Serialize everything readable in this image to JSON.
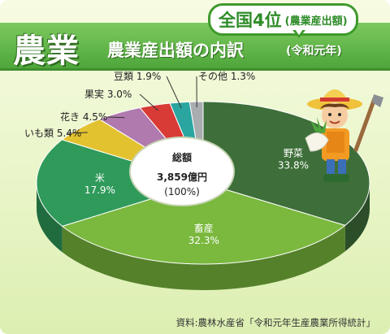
{
  "header": {
    "crop_label": "農業",
    "title": "農業産出額の内訳",
    "subtitle": "(令和元年)",
    "rank_main": "全国4位",
    "rank_note": "(農業産出額)"
  },
  "center_label": {
    "line1": "総額",
    "line2": "3,859億円",
    "line3": "(100%)"
  },
  "chart_data": {
    "type": "pie",
    "title": "農業産出額の内訳",
    "total": "3,859億円",
    "slices": [
      {
        "label": "野菜",
        "value": 33.8,
        "display": "33.8%",
        "color": "#3e6f3a"
      },
      {
        "label": "畜産",
        "value": 32.3,
        "display": "32.3%",
        "color": "#7ab83e"
      },
      {
        "label": "米",
        "value": 17.9,
        "display": "17.9%",
        "color": "#2f9a5a"
      },
      {
        "label": "いも類",
        "value": 5.4,
        "display": "5.4%",
        "color": "#e2c22f"
      },
      {
        "label": "花き",
        "value": 4.5,
        "display": "4.5%",
        "color": "#b07aae"
      },
      {
        "label": "果実",
        "value": 3.0,
        "display": "3.0%",
        "color": "#d83a36"
      },
      {
        "label": "豆類",
        "value": 1.9,
        "display": "1.9%",
        "color": "#2aa5a0"
      },
      {
        "label": "その他",
        "value": 1.3,
        "display": "1.3%",
        "color": "#a9adb0"
      }
    ]
  },
  "source": "資料:農林水産省「令和元年生産農業所得統計」",
  "icons": [
    "farmer-illustration",
    "hoe-icon",
    "radish-icon"
  ]
}
